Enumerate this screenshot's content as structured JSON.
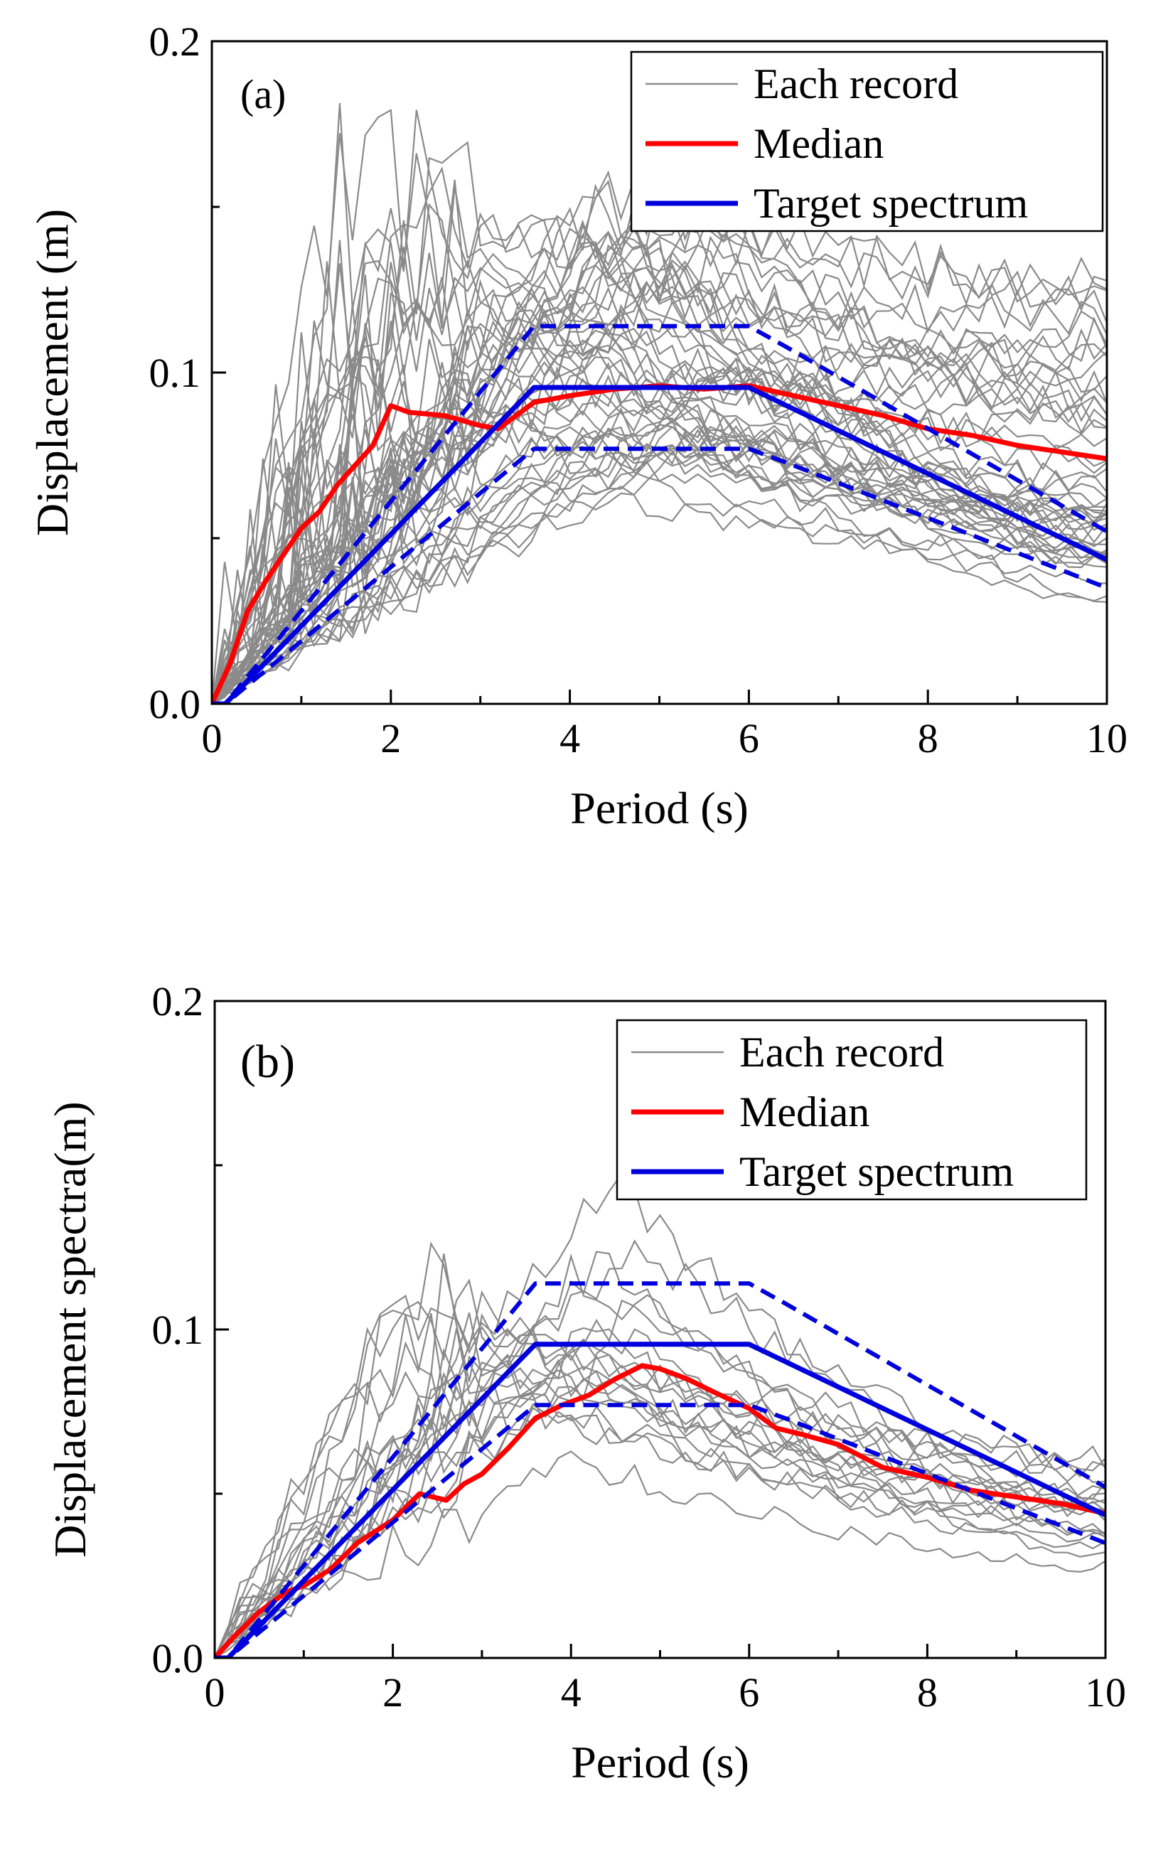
{
  "figure": {
    "background": "#ffffff"
  },
  "colors": {
    "record": "#8a8a8a",
    "median": "#ff0000",
    "target": "#0000dd",
    "axis": "#000000"
  },
  "chart_data": [
    {
      "type": "line",
      "panel_label": "(a)",
      "xlabel": "Period (s)",
      "ylabel": "Displacement (m)",
      "xlim": [
        0,
        10
      ],
      "ylim": [
        0,
        0.2
      ],
      "x_ticks": [
        0,
        2,
        4,
        6,
        8,
        10
      ],
      "x_tick_labels": [
        "0",
        "2",
        "4",
        "6",
        "8",
        "10"
      ],
      "y_ticks": [
        0,
        0.1,
        0.2
      ],
      "y_tick_labels": [
        "0.0",
        "0.1",
        "0.2"
      ],
      "grid": false,
      "legend": {
        "position": "top-right",
        "entries": [
          {
            "label": "Each record",
            "style": "record"
          },
          {
            "label": "Median",
            "style": "median"
          },
          {
            "label": "Target spectrum",
            "style": "target"
          }
        ]
      },
      "record_count": 50,
      "series": [
        {
          "name": "Median",
          "x": [
            0,
            0.2,
            0.4,
            0.6,
            0.8,
            1.0,
            1.2,
            1.4,
            1.6,
            1.8,
            2.0,
            2.2,
            2.6,
            3.0,
            3.2,
            3.6,
            4.0,
            4.5,
            5.0,
            5.5,
            6.0,
            6.5,
            7.0,
            7.5,
            8.0,
            8.5,
            9.0,
            9.5,
            10.0
          ],
          "y": [
            0,
            0.012,
            0.028,
            0.037,
            0.045,
            0.053,
            0.058,
            0.066,
            0.072,
            0.078,
            0.09,
            0.088,
            0.087,
            0.084,
            0.083,
            0.091,
            0.093,
            0.095,
            0.096,
            0.095,
            0.096,
            0.093,
            0.09,
            0.087,
            0.083,
            0.081,
            0.078,
            0.076,
            0.074
          ]
        },
        {
          "name": "Target spectrum",
          "x": [
            0,
            0.15,
            3.6,
            6.0,
            10.0
          ],
          "y": [
            0,
            0,
            0.0955,
            0.0955,
            0.0435
          ]
        },
        {
          "name": "Target upper",
          "x": [
            0,
            0.15,
            3.6,
            6.0,
            6.4,
            10.0
          ],
          "y": [
            0,
            0,
            0.114,
            0.114,
            0.108,
            0.052
          ]
        },
        {
          "name": "Target lower",
          "x": [
            0,
            0.15,
            3.6,
            6.0,
            6.4,
            10.0
          ],
          "y": [
            0,
            0,
            0.077,
            0.077,
            0.073,
            0.035
          ]
        }
      ]
    },
    {
      "type": "line",
      "panel_label": "(b)",
      "xlabel": "Period (s)",
      "ylabel": "Displacement spectra(m)",
      "xlim": [
        0,
        10
      ],
      "ylim": [
        0,
        0.2
      ],
      "x_ticks": [
        0,
        2,
        4,
        6,
        8,
        10
      ],
      "x_tick_labels": [
        "0",
        "2",
        "4",
        "6",
        "8",
        "10"
      ],
      "y_ticks": [
        0,
        0.1,
        0.2
      ],
      "y_tick_labels": [
        "0.0",
        "0.1",
        "0.2"
      ],
      "grid": false,
      "legend": {
        "position": "top-right",
        "entries": [
          {
            "label": "Each record",
            "style": "record"
          },
          {
            "label": "Median",
            "style": "median"
          },
          {
            "label": "Target spectrum",
            "style": "target"
          }
        ]
      },
      "record_count": 20,
      "series": [
        {
          "name": "Median",
          "x": [
            0,
            0.2,
            0.5,
            0.8,
            1.0,
            1.3,
            1.6,
            2.0,
            2.3,
            2.6,
            2.8,
            3.0,
            3.3,
            3.6,
            3.9,
            4.2,
            4.5,
            4.8,
            5.0,
            5.3,
            5.6,
            6.0,
            6.3,
            6.6,
            7.0,
            7.5,
            8.0,
            8.5,
            9.0,
            9.5,
            10.0
          ],
          "y": [
            0,
            0.006,
            0.014,
            0.02,
            0.022,
            0.027,
            0.035,
            0.042,
            0.05,
            0.048,
            0.053,
            0.056,
            0.064,
            0.073,
            0.077,
            0.08,
            0.085,
            0.089,
            0.088,
            0.085,
            0.081,
            0.076,
            0.07,
            0.068,
            0.065,
            0.058,
            0.055,
            0.051,
            0.049,
            0.047,
            0.044
          ]
        },
        {
          "name": "Target spectrum",
          "x": [
            0,
            0.15,
            3.6,
            6.0,
            10.0
          ],
          "y": [
            0,
            0,
            0.0955,
            0.0955,
            0.0435
          ]
        },
        {
          "name": "Target upper",
          "x": [
            0,
            0.15,
            3.6,
            6.0,
            6.4,
            10.0
          ],
          "y": [
            0,
            0,
            0.114,
            0.114,
            0.108,
            0.052
          ]
        },
        {
          "name": "Target lower",
          "x": [
            0,
            0.15,
            3.6,
            6.0,
            6.4,
            10.0
          ],
          "y": [
            0,
            0,
            0.077,
            0.077,
            0.073,
            0.035
          ]
        }
      ]
    }
  ]
}
